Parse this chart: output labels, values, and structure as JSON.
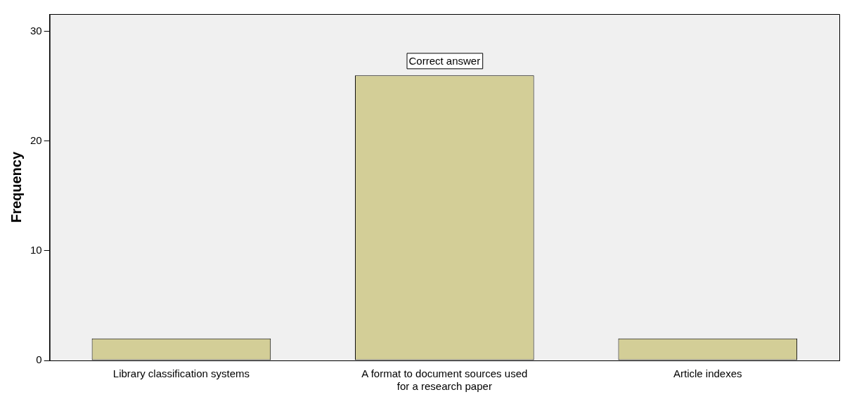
{
  "chart_data": {
    "type": "bar",
    "ylabel": "Frequency",
    "categories": [
      "Library classification systems",
      "A format to document sources used for a research paper",
      "Article indexes"
    ],
    "values": [
      2,
      26,
      2
    ],
    "color": "#d3ce97",
    "ylim": [
      0,
      31.6
    ],
    "yticks": [
      0,
      10,
      20,
      30
    ],
    "grid": false,
    "annotations": [
      {
        "text": "Correct answer",
        "x": "A format to document sources used for a research paper",
        "y": 26
      }
    ]
  }
}
